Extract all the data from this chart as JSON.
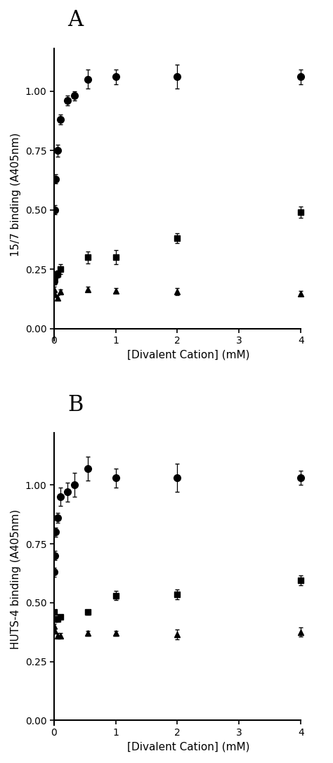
{
  "panel_A": {
    "label": "A",
    "ylabel": "15/7 binding (A405nm)",
    "ylim": [
      -0.05,
      1.18
    ],
    "yticks": [
      0.0,
      0.25,
      0.5,
      0.75,
      1.0
    ],
    "circle": {
      "x": [
        0.0,
        0.01,
        0.02,
        0.05,
        0.1,
        0.2,
        0.3,
        0.5,
        1.0,
        2.0,
        4.0
      ],
      "y": [
        0.2,
        0.5,
        0.63,
        0.75,
        0.88,
        0.96,
        0.98,
        1.05,
        1.06,
        1.06,
        1.06
      ],
      "yerr": [
        0.015,
        0.02,
        0.02,
        0.025,
        0.02,
        0.02,
        0.02,
        0.04,
        0.03,
        0.05,
        0.03
      ]
    },
    "square": {
      "x": [
        0.0,
        0.01,
        0.05,
        0.1,
        0.5,
        1.0,
        2.0,
        4.0
      ],
      "y": [
        0.2,
        0.22,
        0.23,
        0.25,
        0.3,
        0.3,
        0.38,
        0.49
      ],
      "yerr": [
        0.015,
        0.015,
        0.015,
        0.02,
        0.025,
        0.03,
        0.02,
        0.025
      ]
    },
    "triangle": {
      "x": [
        0.0,
        0.01,
        0.05,
        0.1,
        0.5,
        1.0,
        2.0,
        4.0
      ],
      "y": [
        0.165,
        0.145,
        0.13,
        0.155,
        0.165,
        0.16,
        0.155,
        0.148
      ],
      "yerr": [
        0.01,
        0.01,
        0.01,
        0.01,
        0.01,
        0.01,
        0.015,
        0.01
      ]
    }
  },
  "panel_B": {
    "label": "B",
    "ylabel": "HUTS-4 binding (A405nm)",
    "ylim": [
      -0.02,
      1.22
    ],
    "yticks": [
      0.0,
      0.25,
      0.5,
      0.75,
      1.0
    ],
    "circle": {
      "x": [
        0.0,
        0.01,
        0.02,
        0.05,
        0.1,
        0.2,
        0.3,
        0.5,
        1.0,
        2.0,
        4.0
      ],
      "y": [
        0.63,
        0.7,
        0.8,
        0.86,
        0.95,
        0.97,
        1.0,
        1.07,
        1.03,
        1.03,
        1.03
      ],
      "yerr": [
        0.02,
        0.02,
        0.02,
        0.02,
        0.04,
        0.04,
        0.05,
        0.05,
        0.04,
        0.06,
        0.03
      ]
    },
    "square": {
      "x": [
        0.0,
        0.01,
        0.05,
        0.1,
        0.5,
        1.0,
        2.0,
        4.0
      ],
      "y": [
        0.46,
        0.43,
        0.43,
        0.44,
        0.46,
        0.53,
        0.535,
        0.595
      ],
      "yerr": [
        0.01,
        0.01,
        0.01,
        0.01,
        0.01,
        0.02,
        0.02,
        0.02
      ]
    },
    "triangle": {
      "x": [
        0.0,
        0.01,
        0.05,
        0.1,
        0.5,
        1.0,
        2.0,
        4.0
      ],
      "y": [
        0.4,
        0.38,
        0.36,
        0.36,
        0.37,
        0.37,
        0.365,
        0.375
      ],
      "yerr": [
        0.01,
        0.01,
        0.01,
        0.01,
        0.01,
        0.01,
        0.02,
        0.02
      ]
    }
  },
  "xlabel": "[Divalent Cation] (mM)",
  "line_color": "#000000",
  "bg_color": "#ffffff",
  "marker_circle": "o",
  "marker_square": "s",
  "marker_triangle": "^",
  "markersize": 7,
  "linewidth": 1.3,
  "capsize": 2.5,
  "elinewidth": 0.9
}
